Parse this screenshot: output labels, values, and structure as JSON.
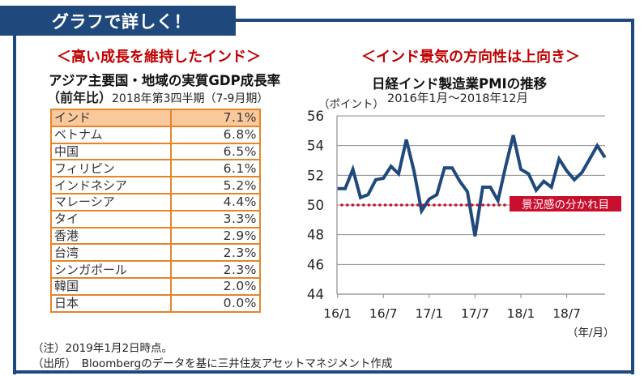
{
  "header": {
    "title": "グラフで詳しく！"
  },
  "colors": {
    "frame": "#1f497d",
    "accent_red": "#c00000",
    "table_border": "#e4852a",
    "table_highlight": "#f9c99c",
    "line": "#1f497d",
    "threshold": "#c8102e"
  },
  "left_panel": {
    "subtitle": "＜高い成長を維持したインド＞",
    "title": "アジア主要国・地域の実質GDP成長率",
    "period_bold": "（前年比）",
    "period": "2018年第3四半期（7-9月期）",
    "rows": [
      {
        "name": "インド",
        "value": "7.1%"
      },
      {
        "name": "ベトナム",
        "value": "6.8%"
      },
      {
        "name": "中国",
        "value": "6.5%"
      },
      {
        "name": "フィリピン",
        "value": "6.1%"
      },
      {
        "name": "インドネシア",
        "value": "5.2%"
      },
      {
        "name": "マレーシア",
        "value": "4.4%"
      },
      {
        "name": "タイ",
        "value": "3.3%"
      },
      {
        "name": "香港",
        "value": "2.9%"
      },
      {
        "name": "台湾",
        "value": "2.3%"
      },
      {
        "name": "シンガポール",
        "value": "2.3%"
      },
      {
        "name": "韓国",
        "value": "2.0%"
      },
      {
        "name": "日本",
        "value": "0.0%"
      }
    ]
  },
  "right_panel": {
    "subtitle": "＜インド景気の方向性は上向き＞"
  },
  "notes": {
    "note1": "（注）2019年1月2日時点。",
    "note2": "（出所）　Bloombergのデータを基に三井住友アセットマネジメント作成"
  },
  "chart_data": [
    {
      "type": "table",
      "title": "アジア主要国・地域の実質GDP成長率（前年比）2018年第3四半期（7-9月期）",
      "categories": [
        "インド",
        "ベトナム",
        "中国",
        "フィリピン",
        "インドネシア",
        "マレーシア",
        "タイ",
        "香港",
        "台湾",
        "シンガポール",
        "韓国",
        "日本"
      ],
      "values": [
        7.1,
        6.8,
        6.5,
        6.1,
        5.2,
        4.4,
        3.3,
        2.9,
        2.3,
        2.3,
        2.0,
        0.0
      ],
      "unit": "%",
      "highlight": "インド"
    },
    {
      "type": "line",
      "title": "日経インド製造業PMIの推移",
      "subtitle": "2016年1月～2018年12月",
      "ylabel": "（ポイント）",
      "xlabel": "（年/月）",
      "ylim": [
        44,
        56
      ],
      "yticks": [
        44,
        46,
        48,
        50,
        52,
        54,
        56
      ],
      "xtick_labels": [
        "16/1",
        "16/7",
        "17/1",
        "17/7",
        "18/1",
        "18/7"
      ],
      "xtick_indices": [
        0,
        6,
        12,
        18,
        24,
        30
      ],
      "grid": true,
      "x": [
        "2016-01",
        "2016-02",
        "2016-03",
        "2016-04",
        "2016-05",
        "2016-06",
        "2016-07",
        "2016-08",
        "2016-09",
        "2016-10",
        "2016-11",
        "2016-12",
        "2017-01",
        "2017-02",
        "2017-03",
        "2017-04",
        "2017-05",
        "2017-06",
        "2017-07",
        "2017-08",
        "2017-09",
        "2017-10",
        "2017-11",
        "2017-12",
        "2018-01",
        "2018-02",
        "2018-03",
        "2018-04",
        "2018-05",
        "2018-06",
        "2018-07",
        "2018-08",
        "2018-09",
        "2018-10",
        "2018-11",
        "2018-12"
      ],
      "series": [
        {
          "name": "日経インド製造業PMI",
          "values": [
            51.1,
            51.1,
            52.4,
            50.5,
            50.7,
            51.7,
            51.8,
            52.6,
            52.1,
            54.4,
            52.3,
            49.6,
            50.4,
            50.7,
            52.5,
            52.5,
            51.6,
            50.9,
            47.9,
            51.2,
            51.2,
            50.3,
            52.6,
            54.7,
            52.4,
            52.1,
            51.0,
            51.6,
            51.2,
            53.1,
            52.3,
            51.7,
            52.2,
            53.1,
            54.0,
            53.2
          ]
        }
      ],
      "threshold": {
        "value": 50,
        "label": "景況感の分かれ目"
      }
    }
  ]
}
